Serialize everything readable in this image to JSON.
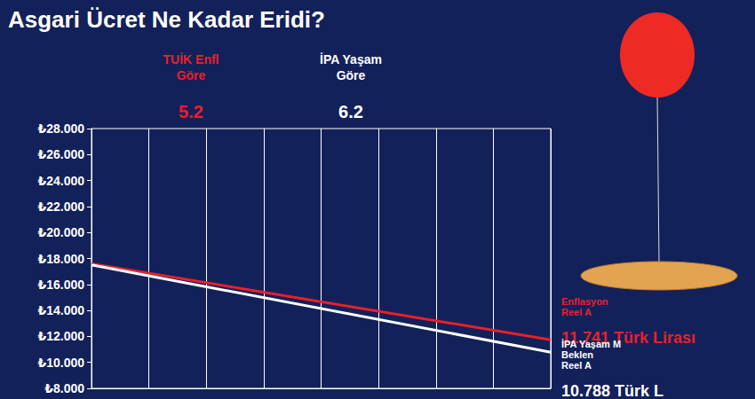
{
  "chart_data": {
    "type": "line",
    "title": "Asgari Ücret Ne Kadar Eridi?",
    "x": [
      0,
      8
    ],
    "xlim": [
      0,
      8
    ],
    "xticks": [
      0,
      1,
      2,
      3,
      4,
      5,
      6,
      7,
      8
    ],
    "ylim": [
      8000,
      28000
    ],
    "yticks": [
      {
        "value": 8000,
        "label": "₺8.000"
      },
      {
        "value": 10000,
        "label": "₺10.000"
      },
      {
        "value": 12000,
        "label": "₺12.000"
      },
      {
        "value": 14000,
        "label": "₺14.000"
      },
      {
        "value": 16000,
        "label": "₺16.000"
      },
      {
        "value": 18000,
        "label": "₺18.000"
      },
      {
        "value": 20000,
        "label": "₺20.000"
      },
      {
        "value": 22000,
        "label": "₺22.000"
      },
      {
        "value": 24000,
        "label": "₺24.000"
      },
      {
        "value": 26000,
        "label": "₺26.000"
      },
      {
        "value": 28000,
        "label": "₺28.000"
      }
    ],
    "grid": true,
    "tick_labels": "y",
    "series": [
      {
        "color": "#e8202a",
        "values": [
          17600,
          11741
        ],
        "heading": [
          "TUİK Enfl",
          "Göre",
          "5.2"
        ],
        "end_label": [
          "Enflasyon",
          "Reel A",
          "11.741 Türk Lirası"
        ]
      },
      {
        "color": "#ffffff",
        "values": [
          17500,
          10788
        ],
        "heading": [
          "İPA Yaşam",
          "Göre",
          "6.2"
        ],
        "end_label": [
          "İPA Yaşam M",
          "Beklen",
          "Reel A",
          "10.788 Türk L"
        ]
      }
    ]
  }
}
